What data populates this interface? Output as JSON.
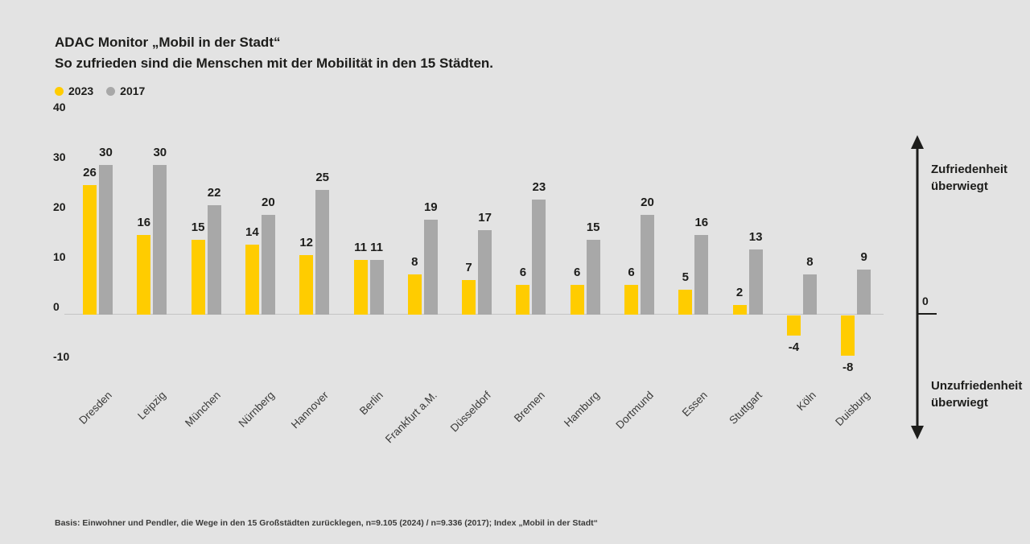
{
  "header": {
    "title": "ADAC Monitor „Mobil in der Stadt“",
    "subtitle": "So zufrieden sind die Menschen mit der Mobilität in den 15 Städten."
  },
  "legend": {
    "items": [
      {
        "label": "2023",
        "color": "#ffcc00"
      },
      {
        "label": "2017",
        "color": "#a8a8a8"
      }
    ]
  },
  "chart_data": {
    "type": "bar",
    "categories": [
      "Dresden",
      "Leipzig",
      "München",
      "Nürnberg",
      "Hannover",
      "Berlin",
      "Frankfurt a.M.",
      "Düsseldorf",
      "Bremen",
      "Hamburg",
      "Dortmund",
      "Essen",
      "Stuttgart",
      "Köln",
      "Duisburg"
    ],
    "series": [
      {
        "name": "2023",
        "color": "#ffcc00",
        "values": [
          26,
          16,
          15,
          14,
          12,
          11,
          8,
          7,
          6,
          6,
          6,
          5,
          2,
          -4,
          -8
        ]
      },
      {
        "name": "2017",
        "color": "#a8a8a8",
        "values": [
          30,
          30,
          22,
          20,
          25,
          11,
          19,
          17,
          23,
          15,
          20,
          16,
          13,
          8,
          9
        ]
      }
    ],
    "title": "ADAC Monitor „Mobil in der Stadt“ — So zufrieden sind die Menschen mit der Mobilität in den 15 Städten.",
    "xlabel": "",
    "ylabel": "",
    "yticks": [
      40,
      30,
      20,
      10,
      0,
      -10
    ],
    "ylim": [
      -10,
      40
    ],
    "grid": false,
    "legend_position": "top-left",
    "bar_value_labels": true
  },
  "axis_annotation": {
    "top_label": "Zufriedenheit überwiegt",
    "zero_label": "0",
    "bottom_label": "Unzufriedenheit überwiegt"
  },
  "footer": {
    "source": "Basis: Einwohner und Pendler, die Wege in den 15 Großstädten zurücklegen, n=9.105 (2024) / n=9.336 (2017); Index „Mobil in der Stadt“"
  },
  "colors": {
    "background": "#e3e3e3",
    "bar_2023": "#ffcc00",
    "bar_2017": "#a8a8a8",
    "text": "#1d1d1b",
    "axis_line": "#c5c5c5"
  }
}
